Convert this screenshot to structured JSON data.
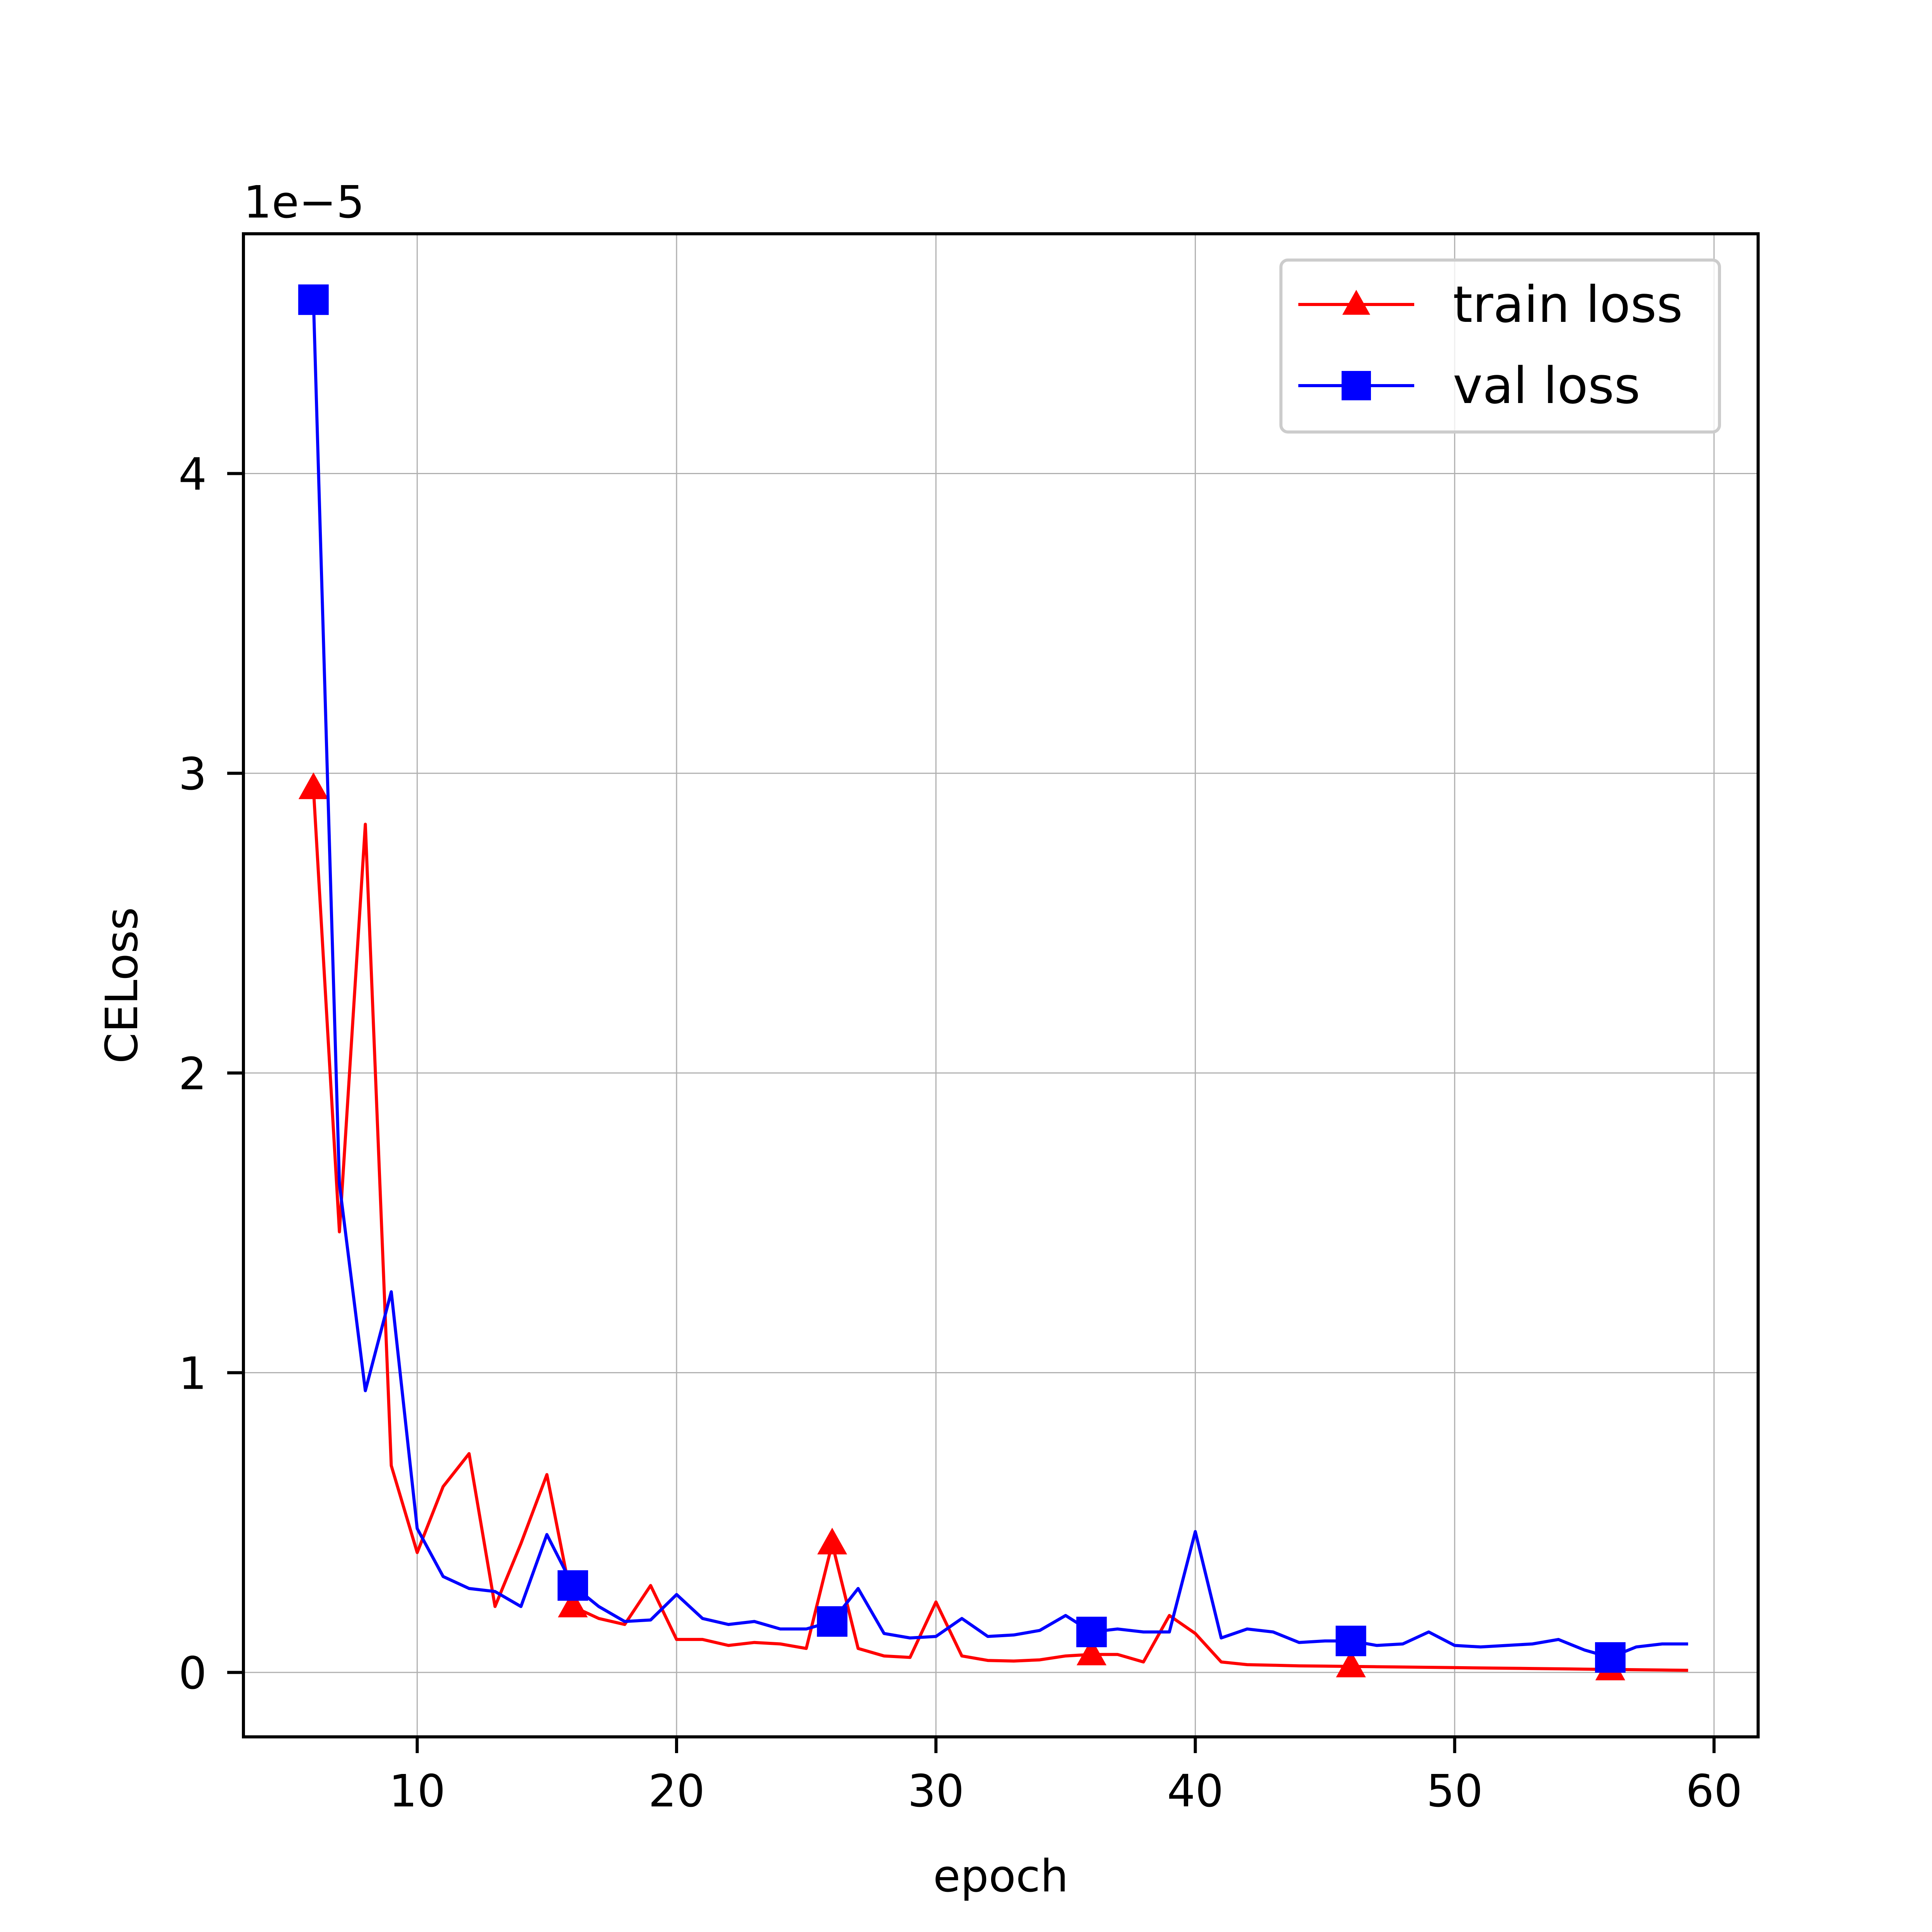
{
  "chart_data": {
    "type": "line",
    "xlabel": "epoch",
    "ylabel": "CELoss",
    "y_offset_label": "1e−5",
    "xlim": [
      3.3,
      61.7
    ],
    "ylim": [
      -0.215,
      4.8
    ],
    "xticks": [
      10,
      20,
      30,
      40,
      50,
      60
    ],
    "yticks": [
      0,
      1,
      2,
      3,
      4
    ],
    "grid": true,
    "legend_position": "top-right",
    "x": [
      6,
      7,
      8,
      9,
      10,
      11,
      12,
      13,
      14,
      15,
      16,
      17,
      18,
      19,
      20,
      21,
      22,
      23,
      24,
      25,
      26,
      27,
      28,
      29,
      30,
      31,
      32,
      33,
      34,
      35,
      36,
      37,
      38,
      39,
      40,
      41,
      42,
      43,
      44,
      45,
      46,
      47,
      48,
      49,
      50,
      51,
      52,
      53,
      54,
      55,
      56,
      57,
      58,
      59
    ],
    "series": [
      {
        "name": "train loss",
        "color": "#ff0000",
        "marker": "triangle",
        "markevery_start": 0,
        "markevery_step": 10,
        "values": [
          2.95,
          1.47,
          2.83,
          0.69,
          0.4,
          0.62,
          0.73,
          0.22,
          0.43,
          0.66,
          0.22,
          0.18,
          0.16,
          0.29,
          0.11,
          0.11,
          0.09,
          0.1,
          0.095,
          0.08,
          0.43,
          0.08,
          0.055,
          0.05,
          0.235,
          0.055,
          0.04,
          0.038,
          0.042,
          0.055,
          0.06,
          0.06,
          0.035,
          0.19,
          0.13,
          0.035,
          0.026,
          0.024,
          0.022,
          0.021,
          0.02,
          0.019,
          0.018,
          0.017,
          0.016,
          0.015,
          0.014,
          0.013,
          0.012,
          0.011,
          0.01,
          0.009,
          0.008,
          0.007
        ]
      },
      {
        "name": "val loss",
        "color": "#0000ff",
        "marker": "square",
        "markevery_start": 0,
        "markevery_step": 10,
        "values": [
          4.58,
          1.63,
          0.94,
          1.27,
          0.48,
          0.32,
          0.28,
          0.27,
          0.22,
          0.46,
          0.29,
          0.22,
          0.17,
          0.175,
          0.26,
          0.18,
          0.16,
          0.17,
          0.145,
          0.145,
          0.17,
          0.28,
          0.13,
          0.115,
          0.12,
          0.18,
          0.12,
          0.125,
          0.14,
          0.19,
          0.135,
          0.145,
          0.135,
          0.135,
          0.47,
          0.115,
          0.145,
          0.135,
          0.1,
          0.105,
          0.105,
          0.09,
          0.095,
          0.135,
          0.09,
          0.085,
          0.09,
          0.095,
          0.11,
          0.075,
          0.05,
          0.085,
          0.095,
          0.095
        ]
      }
    ]
  }
}
